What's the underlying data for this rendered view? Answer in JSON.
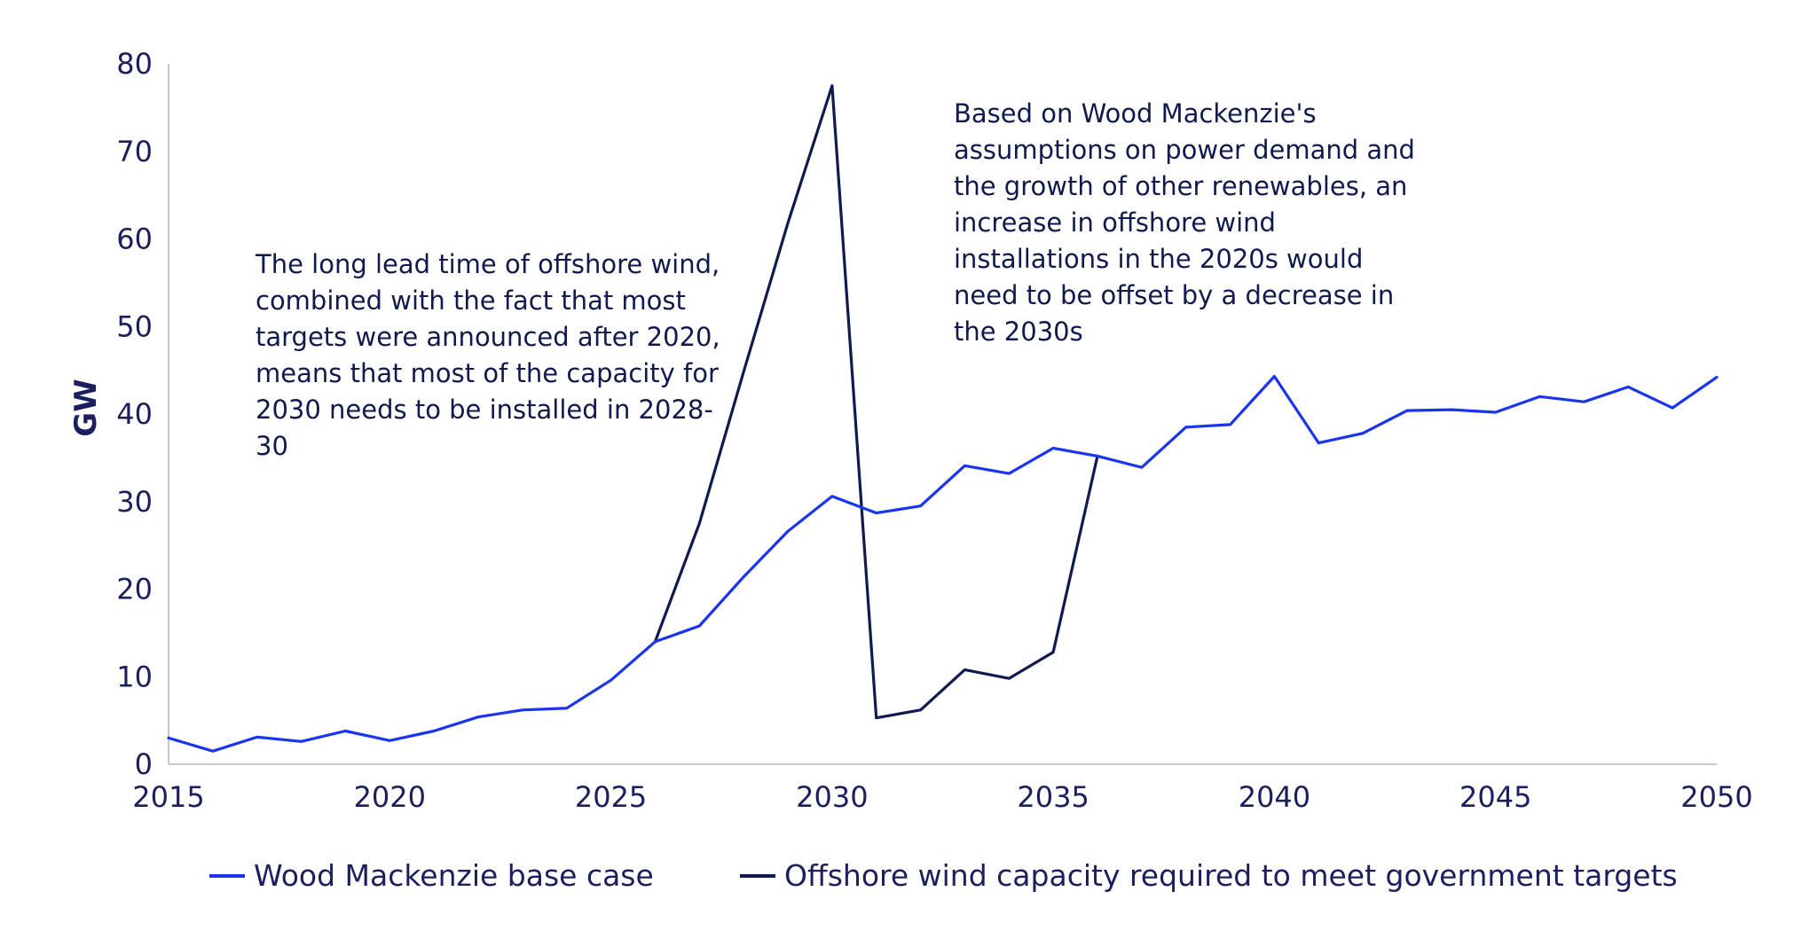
{
  "chart_data": {
    "type": "line",
    "ylabel": "GW",
    "xlabel": "",
    "xlim": [
      2015,
      2050
    ],
    "ylim": [
      0,
      80
    ],
    "x_ticks": [
      "2015",
      "2020",
      "2025",
      "2030",
      "2035",
      "2040",
      "2045",
      "2050"
    ],
    "y_ticks": [
      "0",
      "10",
      "20",
      "30",
      "40",
      "50",
      "60",
      "70",
      "80"
    ],
    "grid": false,
    "legend_position": "bottom",
    "series": [
      {
        "name": "Wood Mackenzie base case",
        "color": "#1a35f0",
        "x": [
          2015,
          2016,
          2017,
          2018,
          2019,
          2020,
          2021,
          2022,
          2023,
          2024,
          2025,
          2026,
          2027,
          2028,
          2029,
          2030,
          2031,
          2032,
          2033,
          2034,
          2035,
          2036,
          2037,
          2038,
          2039,
          2040,
          2041,
          2042,
          2043,
          2044,
          2045,
          2046,
          2047,
          2048,
          2049,
          2050
        ],
        "y": [
          3.0,
          1.5,
          3.1,
          2.6,
          3.8,
          2.7,
          3.8,
          5.4,
          6.2,
          6.4,
          9.6,
          14.0,
          15.8,
          21.4,
          26.6,
          30.6,
          28.7,
          29.5,
          34.1,
          33.2,
          36.1,
          35.2,
          33.9,
          38.5,
          38.8,
          44.3,
          36.7,
          37.8,
          40.4,
          40.5,
          40.2,
          42.0,
          41.4,
          43.1,
          40.7,
          44.2
        ]
      },
      {
        "name": "Offshore wind capacity required to meet government targets",
        "color": "#101a4e",
        "x": [
          2026,
          2027,
          2028,
          2029,
          2030,
          2031,
          2032,
          2033,
          2034,
          2035,
          2036
        ],
        "y": [
          14.0,
          27.5,
          44.8,
          61.8,
          77.5,
          5.3,
          6.2,
          10.8,
          9.8,
          12.8,
          35.2
        ]
      }
    ],
    "annotations": [
      "The long lead time of offshore wind, combined with the fact that most targets were announced after 2020, means that most of the capacity for 2030 needs to be installed in 2028-30",
      "Based on Wood Mackenzie's assumptions on power demand and the growth of other renewables, an increase in offshore wind installations in the 2020s would need to be offset by a decrease in the 2030s"
    ],
    "colors": {
      "axis": "#c8c8c8",
      "text": "#1b1f5e"
    }
  }
}
